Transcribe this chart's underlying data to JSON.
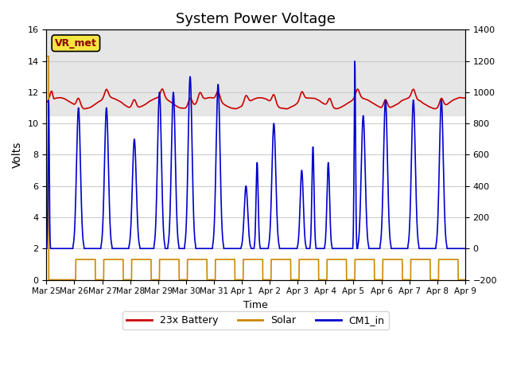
{
  "title": "System Power Voltage",
  "xlabel": "Time",
  "ylabel": "Volts",
  "ylim_left": [
    0,
    16
  ],
  "ylim_right": [
    -200,
    1400
  ],
  "xlim": [
    0,
    15
  ],
  "shade_region": [
    10.5,
    16
  ],
  "shade_color": "#d3d3d3",
  "vr_met_label": "VR_met",
  "grid_color": "#cccccc",
  "legend_labels": [
    "23x Battery",
    "Solar",
    "CM1_in"
  ],
  "legend_colors": [
    "#cc0000",
    "#cc8800",
    "#0000cc"
  ],
  "xtick_labels": [
    "Mar 25",
    "Mar 26",
    "Mar 27",
    "Mar 28",
    "Mar 29",
    "Mar 30",
    "Mar 31",
    "Apr 1",
    "Apr 2",
    "Apr 3",
    "Apr 4",
    "Apr 5",
    "Apr 6",
    "Apr 7",
    "Apr 8",
    "Apr 9"
  ],
  "xtick_positions": [
    0,
    1,
    2,
    3,
    4,
    5,
    6,
    7,
    8,
    9,
    10,
    11,
    12,
    13,
    14,
    15
  ],
  "yticks_left": [
    0,
    2,
    4,
    6,
    8,
    10,
    12,
    14,
    16
  ],
  "yticks_right": [
    -200,
    0,
    200,
    400,
    600,
    800,
    1000,
    1200,
    1400
  ]
}
